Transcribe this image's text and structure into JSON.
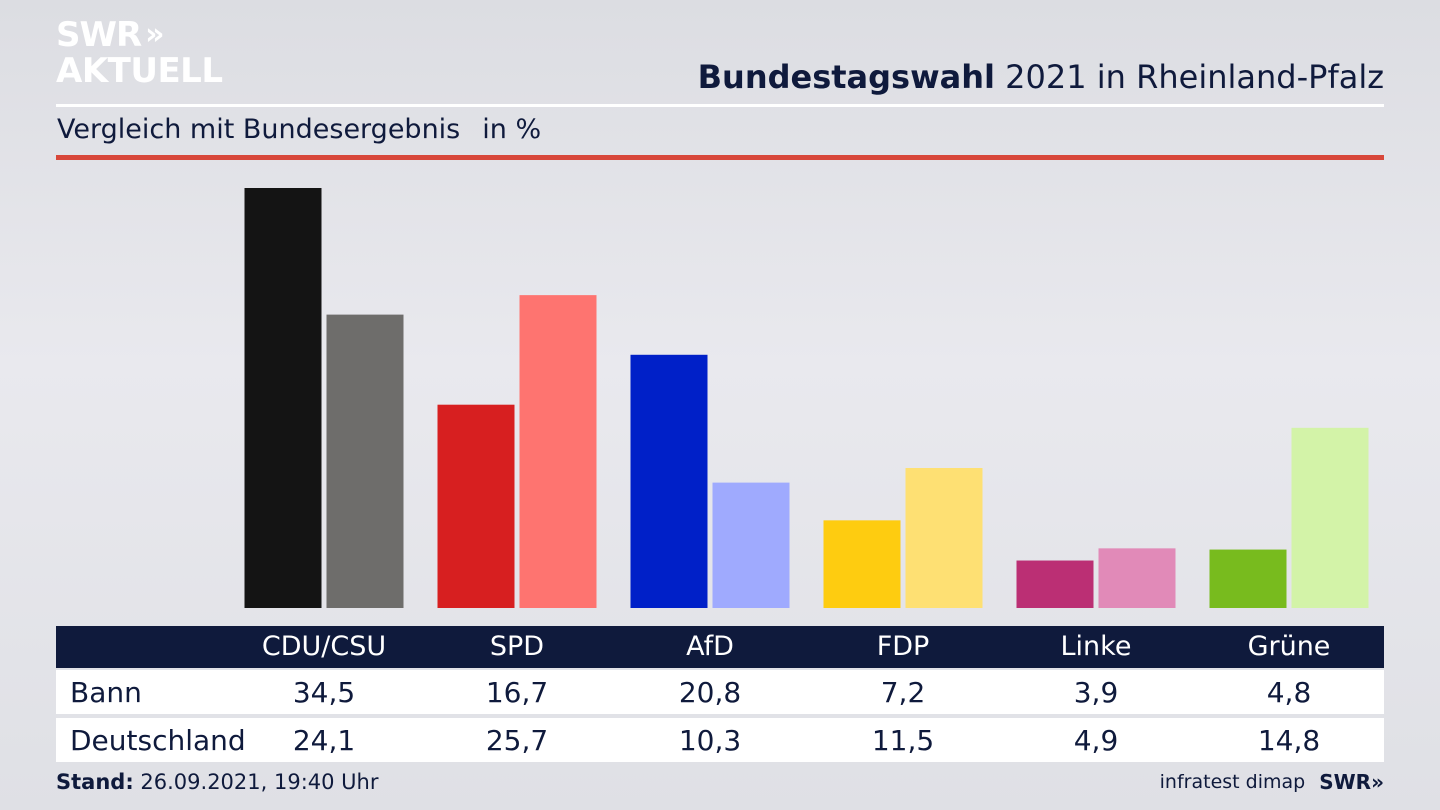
{
  "logo": {
    "line1": "SWR",
    "chevrons": "»",
    "line2": "AKTUELL"
  },
  "header": {
    "title_bold": "Bundestagswahl",
    "title_rest": " 2021 in Rheinland-Pfalz"
  },
  "subtitle": {
    "text": "Vergleich mit Bundesergebnis",
    "unit": "in %"
  },
  "table": {
    "row1_label": "Bann",
    "row2_label": "Deutschland"
  },
  "footer": {
    "stand_label": "Stand:",
    "stand_value": " 26.09.2021, 19:40 Uhr",
    "source": "infratest dimap",
    "brand": "SWR»"
  },
  "chart_data": {
    "type": "bar",
    "title": "Bundestagswahl 2021 in Rheinland-Pfalz",
    "subtitle": "Vergleich mit Bundesergebnis",
    "unit": "in %",
    "categories": [
      "CDU/CSU",
      "SPD",
      "AfD",
      "FDP",
      "Linke",
      "Grüne"
    ],
    "series": [
      {
        "name": "Bann",
        "values": [
          34.5,
          16.7,
          20.8,
          7.2,
          3.9,
          4.8
        ],
        "value_labels": [
          "34,5",
          "16,7",
          "20,8",
          "7,2",
          "3,9",
          "4,8"
        ],
        "colors": [
          "#141414",
          "#d71f20",
          "#0020c8",
          "#fecc10",
          "#bb2f74",
          "#78bb1e"
        ]
      },
      {
        "name": "Deutschland",
        "values": [
          24.1,
          25.7,
          10.3,
          11.5,
          4.9,
          14.8
        ],
        "value_labels": [
          "24,1",
          "25,7",
          "10,3",
          "11,5",
          "4,9",
          "14,8"
        ],
        "colors": [
          "#6e6d6b",
          "#fe7470",
          "#9faafe",
          "#fee073",
          "#e18ab8",
          "#d3f3a8"
        ]
      }
    ],
    "ylim": [
      0,
      34.5
    ],
    "grid": false,
    "legend": "none"
  }
}
